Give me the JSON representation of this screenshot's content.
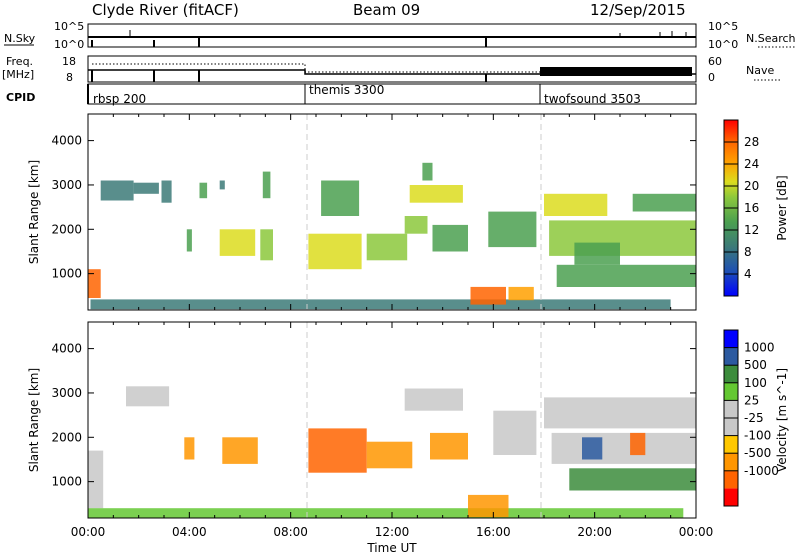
{
  "header": {
    "station": "Clyde River (fitACF)",
    "beam": "Beam 09",
    "date": "12/Sep/2015"
  },
  "panels": {
    "nsky": {
      "label": "N.Sky",
      "tick_top": "10^5",
      "tick_bot": "10^0",
      "right_label": "N.Search",
      "right_tick_top": "10^5",
      "right_tick_bot": "10^0"
    },
    "freq": {
      "label_line1": "Freq.",
      "label_line2": "[MHz]",
      "tick_top": "18",
      "tick_bot": "8",
      "right_label": "Nave",
      "right_tick_top": "60",
      "right_tick_bot": "0"
    },
    "cpid": {
      "label": "CPID",
      "modes": [
        {
          "name": "rbsp 200",
          "start_hour": 0.0
        },
        {
          "name": "themis 3300",
          "start_hour": 8.6
        },
        {
          "name": "twofsound 3503",
          "start_hour": 18.0
        }
      ]
    }
  },
  "colors": {
    "power_scale": [
      "#0000ff",
      "#1e50b4",
      "#3c7a78",
      "#4ba050",
      "#8cc83c",
      "#dcdc1e",
      "#ffa000",
      "#ff6400",
      "#ff0000"
    ],
    "velocity_scale": [
      "#ff0000",
      "#ff6400",
      "#ff9600",
      "#ffc800",
      "#c8c8c8",
      "#c8c8c8",
      "#64c832",
      "#3c8c3c",
      "#2c5aa0",
      "#0000ff"
    ]
  },
  "chart_data": [
    {
      "type": "heatmap",
      "title": "",
      "xlabel": "Time UT",
      "ylabel": "Slant Range [km]",
      "xlim": [
        0,
        24
      ],
      "ylim": [
        180,
        4600
      ],
      "x_ticks": [
        "00:00",
        "04:00",
        "08:00",
        "12:00",
        "16:00",
        "20:00",
        "00:00"
      ],
      "y_ticks": [
        1000,
        2000,
        3000,
        4000
      ],
      "colorbar": {
        "label": "Power [dB]",
        "ticks": [
          4,
          8,
          12,
          16,
          20,
          24,
          28
        ],
        "range": [
          0,
          32
        ]
      },
      "regions": [
        {
          "t0": 0.0,
          "t1": 0.5,
          "r0": 450,
          "r1": 1100,
          "value": 26
        },
        {
          "t0": 0.5,
          "t1": 1.8,
          "r0": 2650,
          "r1": 3100,
          "value": 10
        },
        {
          "t0": 1.8,
          "t1": 2.8,
          "r0": 2800,
          "r1": 3050,
          "value": 9
        },
        {
          "t0": 2.9,
          "t1": 3.3,
          "r0": 2600,
          "r1": 3100,
          "value": 8
        },
        {
          "t0": 3.9,
          "t1": 4.1,
          "r0": 1500,
          "r1": 2000,
          "value": 14
        },
        {
          "t0": 4.4,
          "t1": 4.7,
          "r0": 2700,
          "r1": 3050,
          "value": 12
        },
        {
          "t0": 5.2,
          "t1": 5.4,
          "r0": 2900,
          "r1": 3100,
          "value": 9
        },
        {
          "t0": 5.2,
          "t1": 6.6,
          "r0": 1400,
          "r1": 2000,
          "value": 20
        },
        {
          "t0": 6.8,
          "t1": 7.3,
          "r0": 1300,
          "r1": 2000,
          "value": 17
        },
        {
          "t0": 6.9,
          "t1": 7.2,
          "r0": 2700,
          "r1": 3300,
          "value": 12
        },
        {
          "t0": 0.1,
          "t1": 23.0,
          "r0": 200,
          "r1": 420,
          "value": 9
        },
        {
          "t0": 8.7,
          "t1": 10.8,
          "r0": 1100,
          "r1": 1900,
          "value": 20
        },
        {
          "t0": 9.2,
          "t1": 10.7,
          "r0": 2300,
          "r1": 3100,
          "value": 11
        },
        {
          "t0": 11.0,
          "t1": 12.6,
          "r0": 1300,
          "r1": 1900,
          "value": 15
        },
        {
          "t0": 12.5,
          "t1": 13.4,
          "r0": 1900,
          "r1": 2300,
          "value": 17
        },
        {
          "t0": 12.7,
          "t1": 14.8,
          "r0": 2600,
          "r1": 3000,
          "value": 20
        },
        {
          "t0": 13.2,
          "t1": 13.6,
          "r0": 3100,
          "r1": 3500,
          "value": 14
        },
        {
          "t0": 13.6,
          "t1": 15.0,
          "r0": 1500,
          "r1": 2100,
          "value": 14
        },
        {
          "t0": 15.1,
          "t1": 16.5,
          "r0": 300,
          "r1": 700,
          "value": 27
        },
        {
          "t0": 15.8,
          "t1": 17.7,
          "r0": 1600,
          "r1": 2400,
          "value": 12
        },
        {
          "t0": 16.6,
          "t1": 17.6,
          "r0": 400,
          "r1": 700,
          "value": 22
        },
        {
          "t0": 18.0,
          "t1": 20.5,
          "r0": 2300,
          "r1": 2800,
          "value": 21
        },
        {
          "t0": 18.2,
          "t1": 24.0,
          "r0": 1400,
          "r1": 2200,
          "value": 17
        },
        {
          "t0": 18.5,
          "t1": 24.0,
          "r0": 700,
          "r1": 1200,
          "value": 14
        },
        {
          "t0": 19.2,
          "t1": 21.0,
          "r0": 1200,
          "r1": 1700,
          "value": 11
        },
        {
          "t0": 21.5,
          "t1": 24.0,
          "r0": 2400,
          "r1": 2800,
          "value": 13
        }
      ]
    },
    {
      "type": "heatmap",
      "title": "",
      "xlabel": "Time UT",
      "ylabel": "Slant Range [km]",
      "xlim": [
        0,
        24
      ],
      "ylim": [
        180,
        4600
      ],
      "x_ticks": [
        "00:00",
        "04:00",
        "08:00",
        "12:00",
        "16:00",
        "20:00",
        "00:00"
      ],
      "y_ticks": [
        1000,
        2000,
        3000,
        4000
      ],
      "colorbar": {
        "label": "Velocity [m s^-1]",
        "ticks": [
          1000,
          500,
          100,
          25,
          -25,
          -100,
          -500,
          -1000
        ]
      },
      "regions": [
        {
          "t0": 0.0,
          "t1": 0.6,
          "r0": 400,
          "r1": 1700,
          "value": 0
        },
        {
          "t0": 0.0,
          "t1": 23.5,
          "r0": 180,
          "r1": 400,
          "value": 60
        },
        {
          "t0": 1.5,
          "t1": 3.2,
          "r0": 2700,
          "r1": 3150,
          "value": 0
        },
        {
          "t0": 5.3,
          "t1": 6.7,
          "r0": 1400,
          "r1": 2000,
          "value": -200
        },
        {
          "t0": 3.8,
          "t1": 4.2,
          "r0": 1500,
          "r1": 2000,
          "value": -200
        },
        {
          "t0": 8.7,
          "t1": 11.0,
          "r0": 1200,
          "r1": 2200,
          "value": -550
        },
        {
          "t0": 11.0,
          "t1": 12.8,
          "r0": 1300,
          "r1": 1900,
          "value": -250
        },
        {
          "t0": 12.5,
          "t1": 14.8,
          "r0": 2600,
          "r1": 3100,
          "value": 0
        },
        {
          "t0": 13.5,
          "t1": 15.0,
          "r0": 1500,
          "r1": 2100,
          "value": -150
        },
        {
          "t0": 15.0,
          "t1": 16.6,
          "r0": 200,
          "r1": 700,
          "value": -200
        },
        {
          "t0": 16.0,
          "t1": 17.7,
          "r0": 1600,
          "r1": 2600,
          "value": 0
        },
        {
          "t0": 18.0,
          "t1": 24.0,
          "r0": 2200,
          "r1": 2900,
          "value": 0
        },
        {
          "t0": 18.3,
          "t1": 24.0,
          "r0": 1400,
          "r1": 2100,
          "value": 0
        },
        {
          "t0": 19.5,
          "t1": 20.3,
          "r0": 1500,
          "r1": 2000,
          "value": 600
        },
        {
          "t0": 21.4,
          "t1": 22.0,
          "r0": 1600,
          "r1": 2100,
          "value": -600
        },
        {
          "t0": 19.0,
          "t1": 24.0,
          "r0": 800,
          "r1": 1300,
          "value": 200
        }
      ]
    }
  ]
}
